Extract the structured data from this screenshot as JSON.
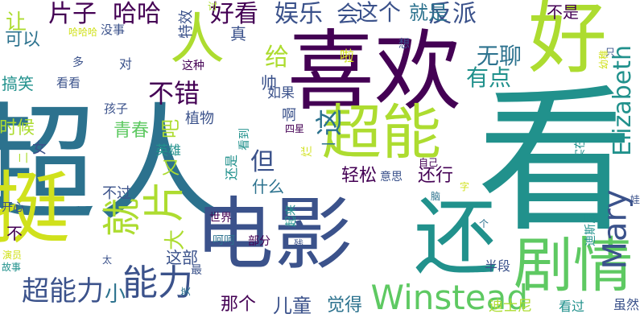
{
  "palette": {
    "dark_purple": "#440154",
    "indigo": "#3b528b",
    "steel_blue": "#2c728e",
    "teal": "#21918c",
    "green": "#5ec962",
    "yellow_green": "#addc30",
    "yellow": "#d0e11c"
  },
  "words": [
    {
      "text": "超人",
      "color": "steel_blue"
    },
    {
      "text": "看",
      "color": "teal"
    },
    {
      "text": "喜欢",
      "color": "dark_purple"
    },
    {
      "text": "电影",
      "color": "indigo"
    },
    {
      "text": "还",
      "color": "teal"
    },
    {
      "text": "好",
      "color": "yellow_green"
    },
    {
      "text": "人",
      "color": "yellow_green"
    },
    {
      "text": "挺",
      "color": "yellow"
    },
    {
      "text": "超能",
      "color": "yellow_green"
    },
    {
      "text": "剧情",
      "color": "green"
    },
    {
      "text": "片",
      "color": "yellow_green"
    },
    {
      "text": "就",
      "color": "yellow_green"
    },
    {
      "text": "能力",
      "color": "indigo"
    },
    {
      "text": "Winstead",
      "color": "green"
    },
    {
      "text": "Mary",
      "color": "indigo"
    },
    {
      "text": "Elizabeth",
      "color": "teal"
    },
    {
      "text": "超能力",
      "color": "indigo"
    },
    {
      "text": "片子",
      "color": "dark_purple"
    },
    {
      "text": "哈哈",
      "color": "dark_purple"
    },
    {
      "text": "好看",
      "color": "dark_purple"
    },
    {
      "text": "娱乐",
      "color": "indigo"
    },
    {
      "text": "这个",
      "color": "indigo"
    },
    {
      "text": "反派",
      "color": "indigo"
    },
    {
      "text": "无聊",
      "color": "steel_blue"
    },
    {
      "text": "有点",
      "color": "teal"
    },
    {
      "text": "不错",
      "color": "dark_purple"
    },
    {
      "text": "这",
      "color": "steel_blue"
    },
    {
      "text": "给",
      "color": "yellow_green"
    },
    {
      "text": "但",
      "color": "indigo"
    },
    {
      "text": "又",
      "color": "yellow_green"
    },
    {
      "text": "大",
      "color": "yellow_green"
    },
    {
      "text": "吧",
      "color": "yellow_green"
    },
    {
      "text": "会",
      "color": "indigo"
    },
    {
      "text": "就是",
      "color": "steel_blue"
    },
    {
      "text": "不是",
      "color": "dark_purple"
    },
    {
      "text": "特效",
      "color": "indigo"
    },
    {
      "text": "讨",
      "color": "yellow_green"
    },
    {
      "text": "让",
      "color": "yellow_green"
    },
    {
      "text": "可以",
      "color": "steel_blue"
    },
    {
      "text": "哈哈哈",
      "color": "yellow"
    },
    {
      "text": "没事",
      "color": "indigo"
    },
    {
      "text": "搞笑",
      "color": "teal"
    },
    {
      "text": "看看",
      "color": "indigo"
    },
    {
      "text": "孩子",
      "color": "indigo"
    },
    {
      "text": "多",
      "color": "indigo"
    },
    {
      "text": "对",
      "color": "indigo"
    },
    {
      "text": "这种",
      "color": "dark_purple"
    },
    {
      "text": "真",
      "color": "indigo"
    },
    {
      "text": "帅",
      "color": "indigo"
    },
    {
      "text": "如果",
      "color": "indigo"
    },
    {
      "text": "啦",
      "color": "yellow"
    },
    {
      "text": "想",
      "color": "indigo"
    },
    {
      "text": "只",
      "color": "indigo"
    },
    {
      "text": "幼稚",
      "color": "yellow"
    },
    {
      "text": "青春",
      "color": "green"
    },
    {
      "text": "植物",
      "color": "indigo"
    },
    {
      "text": "啊",
      "color": "indigo"
    },
    {
      "text": "四星",
      "color": "dark_purple"
    },
    {
      "text": "时候",
      "color": "yellow_green"
    },
    {
      "text": "女",
      "color": "indigo"
    },
    {
      "text": "英雄",
      "color": "teal"
    },
    {
      "text": "二",
      "color": "yellow_green"
    },
    {
      "text": "还是",
      "color": "teal"
    },
    {
      "text": "看到",
      "color": "teal"
    },
    {
      "text": "一",
      "color": "steel_blue"
    },
    {
      "text": "烂",
      "color": "yellow"
    },
    {
      "text": "什么",
      "color": "steel_blue"
    },
    {
      "text": "轻松",
      "color": "dark_purple"
    },
    {
      "text": "意思",
      "color": "indigo"
    },
    {
      "text": "还行",
      "color": "dark_purple"
    },
    {
      "text": "自己",
      "color": "dark_purple"
    },
    {
      "text": "实在",
      "color": "teal"
    },
    {
      "text": "不过",
      "color": "indigo"
    },
    {
      "text": "脑",
      "color": "steel_blue"
    },
    {
      "text": "字",
      "color": "yellow"
    },
    {
      "text": "开心",
      "color": "indigo"
    },
    {
      "text": "世界",
      "color": "dark_purple"
    },
    {
      "text": "起来",
      "color": "teal"
    },
    {
      "text": "娃",
      "color": "indigo"
    },
    {
      "text": "不",
      "color": "dark_purple"
    },
    {
      "text": "这部",
      "color": "indigo"
    },
    {
      "text": "迪斯尼",
      "color": "teal"
    },
    {
      "text": "个",
      "color": "steel_blue"
    },
    {
      "text": "呵呵",
      "color": "steel_blue"
    },
    {
      "text": "部分",
      "color": "dark_purple"
    },
    {
      "text": "残",
      "color": "indigo"
    },
    {
      "text": "故事",
      "color": "teal"
    },
    {
      "text": "演员",
      "color": "yellow"
    },
    {
      "text": "太",
      "color": "indigo"
    },
    {
      "text": "最",
      "color": "indigo"
    },
    {
      "text": "笑",
      "color": "steel_blue"
    },
    {
      "text": "半段",
      "color": "indigo"
    },
    {
      "text": "小",
      "color": "steel_blue"
    },
    {
      "text": "那个",
      "color": "dark_purple"
    },
    {
      "text": "儿童",
      "color": "indigo"
    },
    {
      "text": "觉得",
      "color": "steel_blue"
    },
    {
      "text": "迪士尼",
      "color": "yellow_green"
    },
    {
      "text": "看过",
      "color": "teal"
    },
    {
      "text": "虽然",
      "color": "indigo"
    }
  ]
}
